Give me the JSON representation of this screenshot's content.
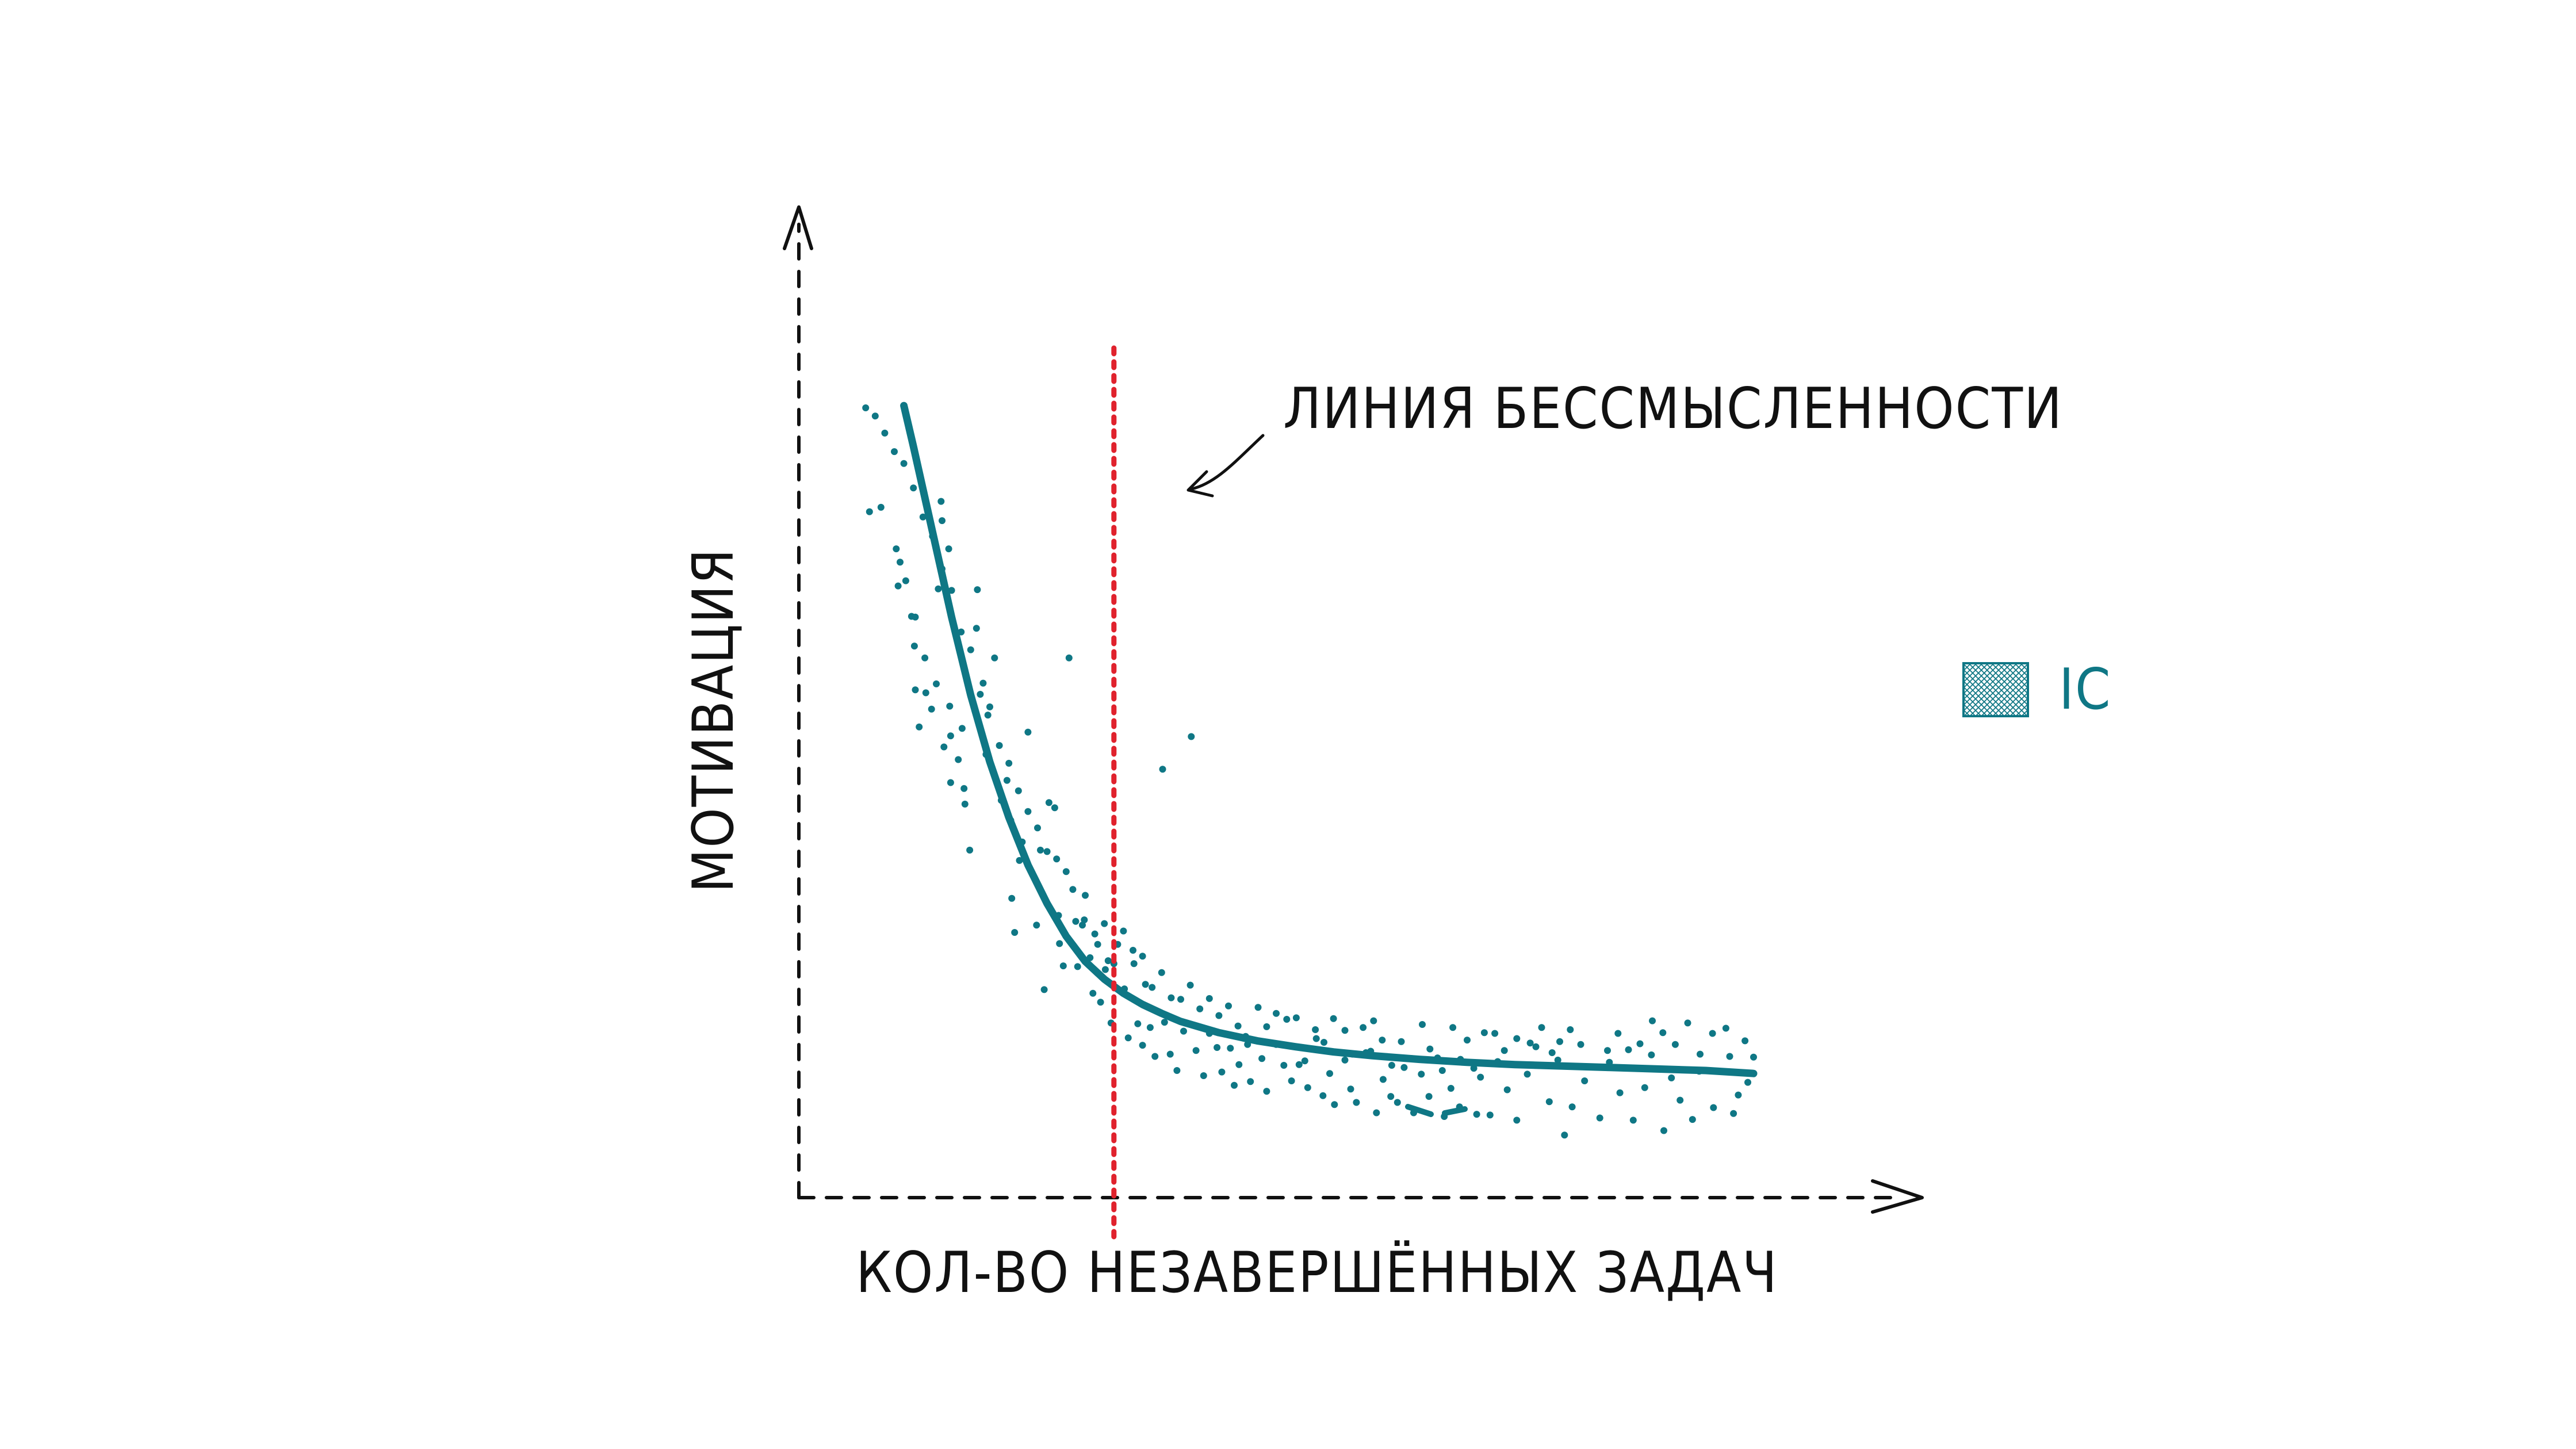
{
  "chart_data": {
    "type": "scatter",
    "title": "",
    "xlabel": "КОЛ-ВО НЕЗАВЕРШЁННЫХ ЗАДАЧ",
    "ylabel": "МОТИВАЦИЯ",
    "annotation": "ЛИНИЯ БЕССМЫСЛЕННОСТИ",
    "xlim": [
      0,
      100
    ],
    "ylim": [
      0,
      100
    ],
    "threshold_x": 33,
    "legend": {
      "position": "right",
      "entries": [
        {
          "label": "IC",
          "style": "cross-hatched swatch"
        }
      ]
    },
    "colors": {
      "series": "#0f7785",
      "threshold": "#e0222d",
      "axis": "#111111",
      "text": "#111111"
    },
    "series": [
      {
        "name": "IC",
        "kind": "points",
        "points": [
          [
            7.4,
            82.2
          ],
          [
            8.6,
            82.8
          ],
          [
            10.2,
            77.2
          ],
          [
            10.4,
            72.2
          ],
          [
            10.6,
            75.4
          ],
          [
            11.2,
            72.9
          ],
          [
            11.8,
            68.1
          ],
          [
            12.1,
            64.1
          ],
          [
            12.2,
            68.0
          ],
          [
            12.2,
            58.2
          ],
          [
            12.6,
            53.2
          ],
          [
            13.2,
            62.5
          ],
          [
            13.3,
            57.8
          ],
          [
            13.9,
            55.6
          ],
          [
            14.9,
            83.6
          ],
          [
            15.0,
            81.0
          ],
          [
            15.7,
            77.2
          ],
          [
            14.6,
            71.8
          ],
          [
            14.4,
            59.0
          ],
          [
            15.2,
            50.5
          ],
          [
            15.9,
            52.0
          ],
          [
            15.8,
            56.0
          ],
          [
            15.9,
            45.7
          ],
          [
            16.7,
            48.8
          ],
          [
            17.1,
            53.0
          ],
          [
            17.3,
            44.9
          ],
          [
            17.4,
            42.8
          ],
          [
            17.9,
            36.6
          ],
          [
            18.7,
            71.7
          ],
          [
            18.6,
            66.5
          ],
          [
            19.3,
            59.1
          ],
          [
            19.6,
            49.5
          ],
          [
            19.8,
            54.8
          ],
          [
            20.5,
            62.5
          ],
          [
            21.2,
            43.3
          ],
          [
            21.8,
            46.0
          ],
          [
            22.2,
            40.6
          ],
          [
            22.3,
            30.1
          ],
          [
            22.6,
            25.5
          ],
          [
            23.1,
            35.2
          ],
          [
            23.4,
            37.7
          ],
          [
            24.0,
            52.5
          ],
          [
            24.5,
            33.3
          ],
          [
            24.9,
            26.5
          ],
          [
            25.3,
            36.6
          ],
          [
            25.7,
            17.8
          ],
          [
            26.2,
            43.0
          ],
          [
            26.8,
            42.3
          ],
          [
            27.2,
            27.8
          ],
          [
            27.3,
            24.0
          ],
          [
            27.7,
            21.0
          ],
          [
            28.3,
            62.5
          ],
          [
            28.7,
            31.3
          ],
          [
            29.2,
            20.9
          ],
          [
            29.7,
            26.5
          ],
          [
            29.9,
            27.2
          ],
          [
            30.5,
            22.1
          ],
          [
            30.8,
            17.3
          ],
          [
            31.3,
            23.9
          ],
          [
            31.6,
            16.1
          ],
          [
            32.1,
            20.5
          ],
          [
            32.4,
            21.7
          ],
          [
            32.7,
            13.3
          ],
          [
            33.4,
            23.9
          ],
          [
            34.1,
            17.9
          ],
          [
            34.5,
            11.3
          ],
          [
            35.1,
            21.3
          ],
          [
            35.5,
            13.2
          ],
          [
            36.0,
            10.3
          ],
          [
            36.3,
            18.5
          ],
          [
            36.8,
            12.7
          ],
          [
            37.3,
            8.8
          ],
          [
            38.1,
            47.5
          ],
          [
            38.3,
            13.4
          ],
          [
            38.9,
            9.1
          ],
          [
            39.6,
            6.9
          ],
          [
            40.3,
            12.2
          ],
          [
            41.1,
            51.9
          ],
          [
            41.6,
            9.6
          ],
          [
            42.4,
            6.2
          ],
          [
            43.0,
            11.9
          ],
          [
            43.8,
            10.0
          ],
          [
            44.3,
            6.7
          ],
          [
            45.2,
            9.9
          ],
          [
            45.6,
            4.9
          ],
          [
            46.1,
            7.7
          ],
          [
            46.8,
            11.5
          ],
          [
            47.3,
            5.4
          ],
          [
            48.5,
            8.5
          ],
          [
            49.0,
            4.1
          ],
          [
            50.0,
            10.4
          ],
          [
            50.8,
            7.6
          ],
          [
            51.6,
            5.5
          ],
          [
            52.4,
            7.7
          ],
          [
            53.3,
            4.6
          ],
          [
            54.2,
            11.2
          ],
          [
            54.9,
            3.5
          ],
          [
            55.6,
            6.5
          ],
          [
            56.1,
            2.3
          ],
          [
            57.2,
            8.3
          ],
          [
            57.8,
            4.4
          ],
          [
            58.4,
            2.6
          ],
          [
            59.4,
            9.3
          ],
          [
            59.9,
            9.5
          ],
          [
            60.5,
            1.2
          ],
          [
            61.2,
            5.7
          ],
          [
            62.0,
            3.4
          ],
          [
            62.7,
            2.6
          ],
          [
            63.4,
            7.3
          ],
          [
            64.4,
            1.2
          ],
          [
            65.2,
            6.4
          ],
          [
            66.0,
            3.4
          ],
          [
            66.9,
            8.6
          ],
          [
            67.6,
            0.7
          ],
          [
            68.3,
            4.5
          ],
          [
            69.2,
            2.0
          ],
          [
            70.0,
            11.0
          ],
          [
            71.0,
            1.0
          ],
          [
            71.4,
            6.0
          ],
          [
            72.4,
            0.9
          ],
          [
            73.2,
            8.1
          ],
          [
            74.2,
            4.3
          ],
          [
            75.2,
            0.2
          ],
          [
            76.3,
            6.4
          ],
          [
            77.2,
            10.1
          ],
          [
            78.6,
            2.7
          ],
          [
            79.5,
            8.3
          ],
          [
            80.2,
            -1.8
          ],
          [
            81.0,
            2.0
          ],
          [
            82.3,
            5.5
          ],
          [
            83.9,
            0.5
          ],
          [
            84.9,
            8.0
          ],
          [
            86.0,
            3.9
          ],
          [
            87.4,
            0.2
          ],
          [
            88.6,
            4.6
          ],
          [
            89.3,
            9.0
          ],
          [
            90.6,
            -1.2
          ],
          [
            91.4,
            5.9
          ],
          [
            92.3,
            2.9
          ],
          [
            93.6,
            0.3
          ],
          [
            94.3,
            6.8
          ],
          [
            95.8,
            1.9
          ],
          [
            97.5,
            8.8
          ],
          [
            98.4,
            3.6
          ],
          [
            99.1,
            10.9
          ],
          [
            97.9,
            1.1
          ],
          [
            100.0,
            8.7
          ],
          [
            99.4,
            5.3
          ],
          [
            97.1,
            12.6
          ],
          [
            95.7,
            11.9
          ],
          [
            94.4,
            9.1
          ],
          [
            93.1,
            13.3
          ],
          [
            91.8,
            10.4
          ],
          [
            90.5,
            12.0
          ],
          [
            89.4,
            13.6
          ],
          [
            88.1,
            10.5
          ],
          [
            86.9,
            9.7
          ],
          [
            85.8,
            11.9
          ],
          [
            84.7,
            9.6
          ],
          [
            83.2,
            7.4
          ],
          [
            81.9,
            10.4
          ],
          [
            80.8,
            12.4
          ],
          [
            79.7,
            10.8
          ],
          [
            78.9,
            9.3
          ],
          [
            77.8,
            12.7
          ],
          [
            76.6,
            10.6
          ],
          [
            75.2,
            11.2
          ],
          [
            73.9,
            9.6
          ],
          [
            72.9,
            11.9
          ],
          [
            71.8,
            12.0
          ],
          [
            70.7,
            7.2
          ],
          [
            69.3,
            8.4
          ],
          [
            68.5,
            12.7
          ],
          [
            67.4,
            6.9
          ],
          [
            66.1,
            9.8
          ],
          [
            65.3,
            13.1
          ],
          [
            64.2,
            8.5
          ],
          [
            63.1,
            10.8
          ],
          [
            62.1,
            7.6
          ],
          [
            61.1,
            11.0
          ],
          [
            60.2,
            13.6
          ],
          [
            59.1,
            12.7
          ],
          [
            58.0,
            9.1
          ],
          [
            57.2,
            12.3
          ],
          [
            56.0,
            13.9
          ],
          [
            55.0,
            10.7
          ],
          [
            54.1,
            12.4
          ],
          [
            53.0,
            8.2
          ],
          [
            52.1,
            14.0
          ],
          [
            51.1,
            13.8
          ],
          [
            50.0,
            14.6
          ],
          [
            49.0,
            12.8
          ],
          [
            48.1,
            15.4
          ],
          [
            47.0,
            10.4
          ],
          [
            46.0,
            12.9
          ],
          [
            45.0,
            15.6
          ],
          [
            44.0,
            14.3
          ],
          [
            43.0,
            16.6
          ],
          [
            42.0,
            15.2
          ],
          [
            41.0,
            18.4
          ],
          [
            40.0,
            16.5
          ],
          [
            39.0,
            16.7
          ],
          [
            38.0,
            20.1
          ],
          [
            37.0,
            18.1
          ],
          [
            36.0,
            22.3
          ],
          [
            35.0,
            23.1
          ],
          [
            34.0,
            25.7
          ],
          [
            33.0,
            21.3
          ],
          [
            32.0,
            26.7
          ],
          [
            31.0,
            25.3
          ],
          [
            30.0,
            30.5
          ],
          [
            29.0,
            27.0
          ],
          [
            28.0,
            33.7
          ],
          [
            27.0,
            35.4
          ],
          [
            26.0,
            36.4
          ],
          [
            25.0,
            39.6
          ],
          [
            24.0,
            41.8
          ],
          [
            23.0,
            44.6
          ],
          [
            22.0,
            48.3
          ],
          [
            21.0,
            50.7
          ],
          [
            20.0,
            55.9
          ],
          [
            19.0,
            57.6
          ],
          [
            18.0,
            63.6
          ],
          [
            17.0,
            66.0
          ],
          [
            16.0,
            71.6
          ],
          [
            15.0,
            74.5
          ],
          [
            14.0,
            78.9
          ],
          [
            13.0,
            81.5
          ],
          [
            12.0,
            85.4
          ],
          [
            11.0,
            88.7
          ],
          [
            10.0,
            90.3
          ],
          [
            9.0,
            92.8
          ],
          [
            8.0,
            95.1
          ],
          [
            7.0,
            96.2
          ]
        ]
      },
      {
        "name": "IC",
        "kind": "trend",
        "x": [
          11.0,
          12.0,
          14.0,
          16.0,
          18.0,
          20.0,
          22.0,
          24.0,
          26.0,
          28.0,
          30.0,
          32.0,
          34.0,
          36.0,
          38.0,
          40.0,
          44.0,
          48.0,
          52.0,
          56.0,
          60.0,
          65.0,
          70.0,
          75.0,
          80.0,
          85.0,
          90.0,
          95.0,
          100.0
        ],
        "values": [
          96.5,
          91.0,
          79.5,
          68.0,
          57.5,
          48.5,
          41.0,
          34.6,
          29.4,
          25.0,
          21.6,
          19.2,
          17.3,
          15.8,
          14.6,
          13.5,
          12.0,
          10.9,
          10.1,
          9.4,
          8.9,
          8.4,
          8.0,
          7.7,
          7.5,
          7.3,
          7.1,
          6.9,
          6.5
        ]
      }
    ]
  }
}
